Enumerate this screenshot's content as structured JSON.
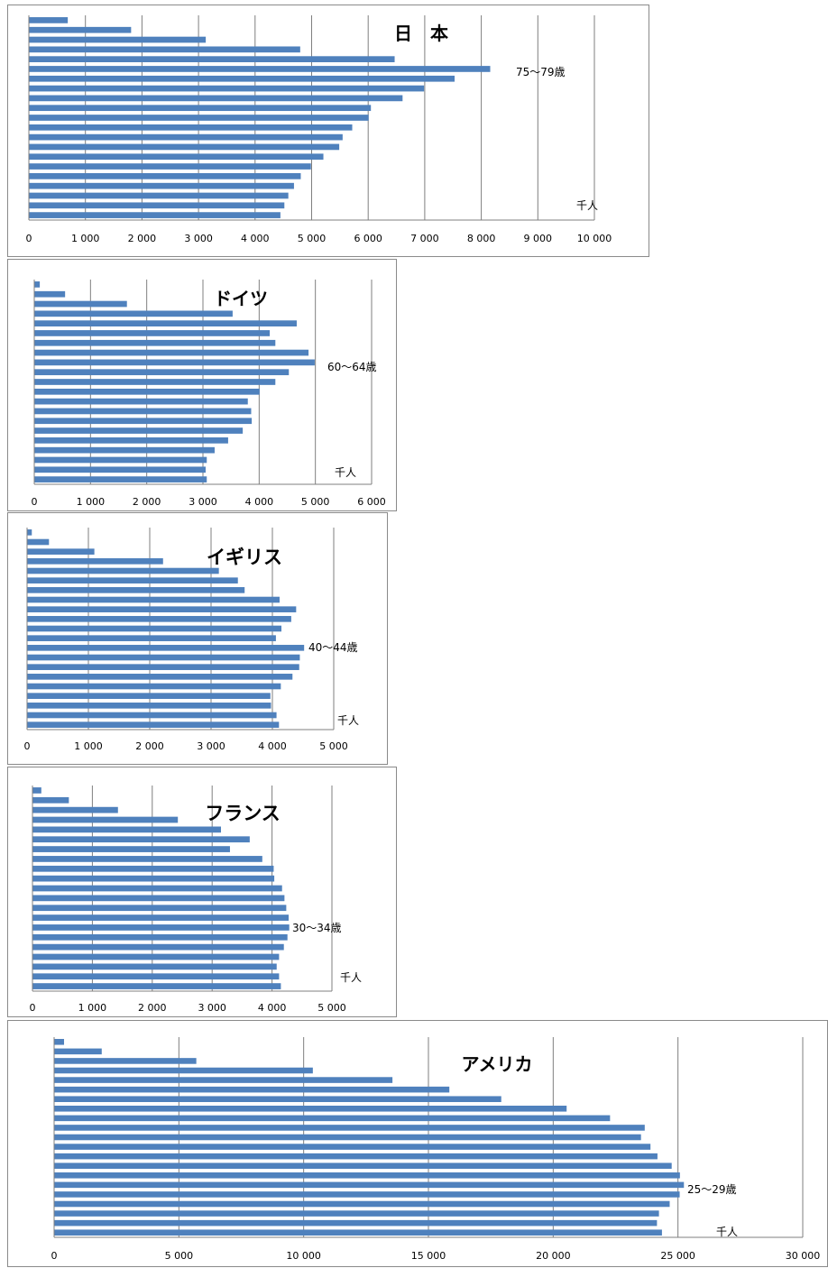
{
  "chart_data": [
    {
      "type": "bar",
      "orientation": "horizontal",
      "title": "日　本",
      "unit_label": "千人",
      "annotation": "75〜79歳",
      "xlim": [
        0,
        10000
      ],
      "x_ticks": [
        "0",
        "1 000",
        "2 000",
        "3 000",
        "4 000",
        "5 000",
        "6 000",
        "7 000",
        "8 000",
        "9 000",
        "10 000"
      ],
      "grid": true,
      "values": [
        680,
        1800,
        3120,
        4790,
        6460,
        8150,
        7520,
        6980,
        6600,
        6040,
        6000,
        5710,
        5540,
        5480,
        5200,
        4980,
        4800,
        4680,
        4580,
        4510,
        4440
      ]
    },
    {
      "type": "bar",
      "orientation": "horizontal",
      "title": "ドイツ",
      "unit_label": "千人",
      "annotation": "60〜64歳",
      "xlim": [
        0,
        6000
      ],
      "x_ticks": [
        "0",
        "1 000",
        "2 000",
        "3 000",
        "4 000",
        "5 000",
        "6 000"
      ],
      "grid": true,
      "values": [
        90,
        540,
        1640,
        3520,
        4660,
        4180,
        4280,
        4870,
        4980,
        4520,
        4280,
        4000,
        3790,
        3850,
        3860,
        3700,
        3440,
        3200,
        3060,
        3040,
        3060
      ]
    },
    {
      "type": "bar",
      "orientation": "horizontal",
      "title": "イギリス",
      "unit_label": "千人",
      "annotation": "40〜44歳",
      "xlim": [
        0,
        5000
      ],
      "x_ticks": [
        "0",
        "1 000",
        "2 000",
        "3 000",
        "4 000",
        "5 000"
      ],
      "grid": true,
      "values": [
        70,
        350,
        1090,
        2210,
        3120,
        3430,
        3540,
        4110,
        4380,
        4300,
        4140,
        4050,
        4510,
        4440,
        4430,
        4320,
        4130,
        3960,
        3970,
        4060,
        4100
      ]
    },
    {
      "type": "bar",
      "orientation": "horizontal",
      "title": "フランス",
      "unit_label": "千人",
      "annotation": "30〜34歳",
      "xlim": [
        0,
        5000
      ],
      "x_ticks": [
        "0",
        "1 000",
        "2 000",
        "3 000",
        "4 000",
        "5 000"
      ],
      "grid": true,
      "values": [
        140,
        600,
        1420,
        2420,
        3140,
        3620,
        3290,
        3830,
        4020,
        4030,
        4160,
        4200,
        4230,
        4270,
        4280,
        4250,
        4190,
        4110,
        4070,
        4110,
        4140
      ]
    },
    {
      "type": "bar",
      "orientation": "horizontal",
      "title": "アメリカ",
      "unit_label": "千人",
      "annotation": "25〜29歳",
      "xlim": [
        0,
        30000
      ],
      "x_ticks": [
        "0",
        "5 000",
        "10 000",
        "15 000",
        "20 000",
        "25 000",
        "30 000"
      ],
      "grid": true,
      "values": [
        380,
        1890,
        5680,
        10350,
        13540,
        15820,
        17900,
        20520,
        22260,
        23650,
        23500,
        23880,
        24160,
        24730,
        25060,
        25220,
        25050,
        24650,
        24220,
        24140,
        24340
      ]
    }
  ]
}
